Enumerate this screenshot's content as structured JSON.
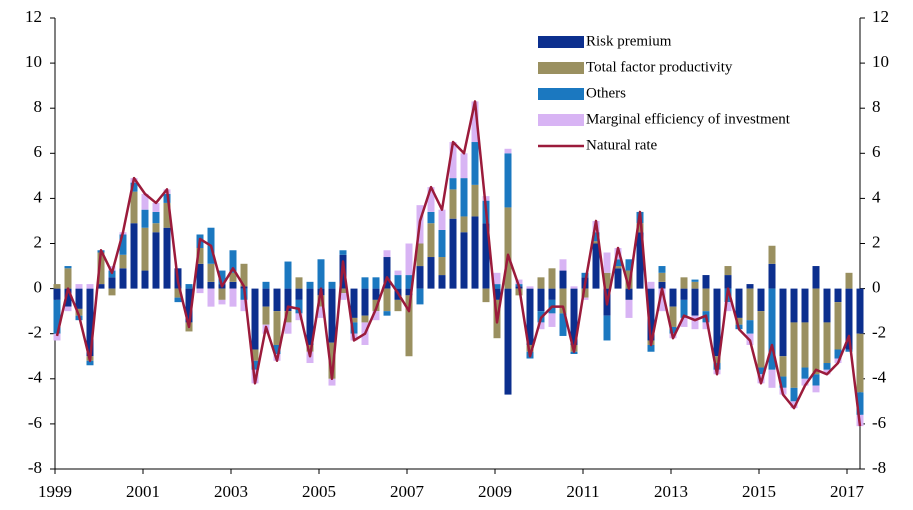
{
  "chart_data": {
    "type": "bar",
    "stacked": true,
    "categories": [
      "1999",
      null,
      null,
      null,
      null,
      null,
      null,
      null,
      "2001",
      null,
      null,
      null,
      null,
      null,
      null,
      null,
      "2003",
      null,
      null,
      null,
      null,
      null,
      null,
      null,
      "2005",
      null,
      null,
      null,
      null,
      null,
      null,
      null,
      "2007",
      null,
      null,
      null,
      null,
      null,
      null,
      null,
      "2009",
      null,
      null,
      null,
      null,
      null,
      null,
      null,
      "2011",
      null,
      null,
      null,
      null,
      null,
      null,
      null,
      "2013",
      null,
      null,
      null,
      null,
      null,
      null,
      null,
      "2015",
      null,
      null,
      null,
      null,
      null,
      null,
      null,
      "2017",
      null
    ],
    "series": [
      {
        "name": "Risk premium",
        "color": "#0c2f8e",
        "values": [
          -0.5,
          -0.8,
          -0.9,
          -3.0,
          0.2,
          0.5,
          0.9,
          2.9,
          0.8,
          2.5,
          2.7,
          0.9,
          -1.5,
          1.1,
          0.3,
          0.2,
          0.3,
          0.1,
          -2.7,
          -0.8,
          -1.0,
          -1.0,
          -0.5,
          -2.5,
          -0.3,
          -2.4,
          1.5,
          -1.3,
          -1.2,
          -0.5,
          1.4,
          -0.5,
          -0.3,
          1.0,
          1.4,
          0.6,
          3.1,
          2.5,
          3.2,
          2.9,
          -0.5,
          -4.7,
          0.1,
          -2.5,
          -1.0,
          -0.5,
          0.8,
          -2.5,
          0.5,
          2.0,
          -1.2,
          0.9,
          -0.5,
          2.5,
          -2.3,
          0.3,
          -0.8,
          -0.5,
          -1.2,
          0.6,
          -3.0,
          0.6,
          -1.3,
          0.2,
          -1.0,
          1.1,
          -3.0,
          -1.5,
          -1.5,
          1.0,
          -1.5,
          -0.6,
          -2.7,
          -2.0
        ]
      },
      {
        "name": "Total factor productivity",
        "color": "#9a9060",
        "values": [
          0.2,
          0.9,
          -0.3,
          -0.2,
          1.4,
          -0.3,
          0.6,
          1.4,
          1.9,
          0.4,
          1.1,
          -0.4,
          -0.4,
          0.7,
          0.8,
          -0.5,
          0.4,
          1.0,
          -0.5,
          -0.8,
          -1.5,
          -0.5,
          0.5,
          -0.3,
          -0.5,
          -1.6,
          -0.2,
          -0.2,
          -0.3,
          -0.5,
          -1.0,
          -0.5,
          -2.7,
          1.0,
          1.5,
          0.8,
          1.3,
          0.7,
          1.4,
          -0.6,
          -1.7,
          3.6,
          -0.3,
          -0.3,
          0.5,
          0.9,
          -1.1,
          -0.3,
          -0.4,
          0.1,
          0.7,
          0.1,
          0.8,
          0.4,
          -0.2,
          0.4,
          -0.9,
          0.5,
          0.3,
          -1.0,
          -0.3,
          0.4,
          -0.3,
          -1.4,
          -2.5,
          0.8,
          -0.9,
          -2.9,
          -2.0,
          -3.8,
          -1.8,
          -2.1,
          0.7,
          -2.6
        ]
      },
      {
        "name": "Others",
        "color": "#1b78c0",
        "values": [
          -1.5,
          0.1,
          -0.2,
          -0.2,
          0.1,
          0.3,
          0.9,
          0.4,
          0.8,
          0.5,
          0.4,
          -0.2,
          0.2,
          0.6,
          1.6,
          0.6,
          1.0,
          -0.5,
          -0.4,
          0.3,
          -0.4,
          1.2,
          -0.6,
          0.3,
          1.3,
          0.3,
          0.2,
          -0.5,
          0.5,
          0.5,
          -0.2,
          0.6,
          0.6,
          -0.7,
          0.5,
          1.2,
          0.5,
          1.7,
          1.9,
          1.0,
          0.2,
          2.4,
          0.1,
          -0.3,
          -0.5,
          -0.6,
          -1.0,
          -0.1,
          0.2,
          0.4,
          -1.1,
          0.3,
          0.5,
          0.5,
          -0.3,
          0.3,
          -0.3,
          -0.8,
          0.1,
          -0.5,
          -0.3,
          -0.6,
          -0.2,
          -0.6,
          -0.3,
          -3.6,
          -0.5,
          -0.6,
          -0.5,
          -0.5,
          -0.3,
          -0.4,
          -0.1,
          -1.0
        ]
      },
      {
        "name": "Marginal efficiency of investment",
        "color": "#d8b4f4",
        "values": [
          -0.3,
          -0.2,
          0.2,
          0.2,
          0.0,
          0.2,
          0.1,
          0.2,
          0.7,
          0.4,
          0.2,
          0.0,
          0.0,
          -0.2,
          -0.8,
          -0.2,
          -0.8,
          -0.5,
          -0.6,
          -0.4,
          -0.3,
          -0.5,
          -0.3,
          -0.5,
          -0.5,
          -0.3,
          -0.3,
          -0.3,
          -1.0,
          -0.4,
          0.3,
          0.2,
          1.4,
          1.7,
          1.1,
          0.9,
          1.6,
          1.1,
          1.8,
          0.2,
          0.5,
          0.2,
          0.2,
          0.1,
          -0.3,
          -0.6,
          0.5,
          0.1,
          -0.1,
          0.5,
          0.9,
          0.5,
          -0.8,
          0.0,
          0.3,
          -1.0,
          -0.2,
          -0.4,
          -0.6,
          -0.3,
          -0.2,
          -0.4,
          0.0,
          -0.5,
          -0.4,
          -0.8,
          -0.3,
          -0.3,
          -0.3,
          -0.3,
          -0.2,
          -0.2,
          0.0,
          -0.5
        ]
      },
      {
        "name": "Natural rate",
        "color": "#9b1b3b",
        "type": "line",
        "values": [
          -2.1,
          0.0,
          -1.2,
          -3.2,
          1.7,
          0.7,
          2.5,
          4.9,
          4.2,
          3.8,
          4.4,
          0.3,
          -1.7,
          2.2,
          1.9,
          0.1,
          0.9,
          0.1,
          -4.2,
          -1.7,
          -3.2,
          -0.8,
          -0.9,
          -3.0,
          0.0,
          -4.0,
          1.2,
          -2.3,
          -2.0,
          -0.9,
          0.5,
          -0.2,
          -1.0,
          3.0,
          4.5,
          3.5,
          6.5,
          6.0,
          8.3,
          3.5,
          -1.5,
          1.5,
          0.1,
          -3.0,
          -1.3,
          -0.8,
          -0.8,
          -2.8,
          0.2,
          3.0,
          -0.7,
          1.8,
          0.0,
          3.4,
          -2.5,
          0.0,
          -2.2,
          -1.2,
          -1.4,
          -1.2,
          -3.8,
          0.0,
          -1.8,
          -2.3,
          -4.2,
          -2.5,
          -4.7,
          -5.3,
          -4.3,
          -3.6,
          -3.8,
          -3.3,
          -2.1,
          -6.1
        ]
      }
    ],
    "ylim": [
      -8,
      12
    ],
    "yticks": [
      -8,
      -6,
      -4,
      -2,
      0,
      2,
      4,
      6,
      8,
      10,
      12
    ],
    "y2lim": [
      -8,
      12
    ],
    "y2ticks": [
      -8,
      -6,
      -4,
      -2,
      0,
      2,
      4,
      6,
      8,
      10,
      12
    ],
    "grid": false,
    "legend": "top-right"
  }
}
